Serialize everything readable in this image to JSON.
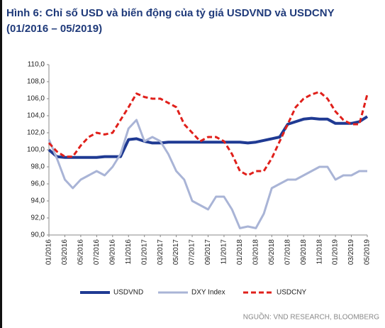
{
  "chart_data": {
    "type": "line",
    "title": "Hình 6: Chỉ số USD và biến động của tỷ giá USDVND và USDCNY (01/2016 – 05/2019)",
    "source": "NGUỒN: VND RESEARCH, BLOOMBERG",
    "categories": [
      "01/2016",
      null,
      "03/2016",
      null,
      "05/2016",
      null,
      "07/2016",
      null,
      "09/2016",
      null,
      "11/2016",
      null,
      "01/2017",
      null,
      "03/2017",
      null,
      "05/2017",
      null,
      "07/2017",
      null,
      "09/2017",
      null,
      "11/2017",
      null,
      "01/2018",
      null,
      "03/2018",
      null,
      "05/2018",
      null,
      "07/2018",
      null,
      "09/2018",
      null,
      "11/2018",
      null,
      "01/2019",
      null,
      "03/2019",
      null,
      "05/2019"
    ],
    "series": [
      {
        "name": "USDVND",
        "color": "#1f3a93",
        "width": 4,
        "dash": "none",
        "values": [
          100.0,
          99.2,
          99.1,
          99.1,
          99.1,
          99.1,
          99.1,
          99.2,
          99.2,
          99.2,
          101.2,
          101.3,
          101.0,
          100.8,
          100.8,
          100.9,
          100.9,
          100.9,
          100.9,
          100.9,
          100.9,
          100.9,
          100.9,
          100.9,
          100.9,
          100.8,
          100.9,
          101.1,
          101.3,
          101.5,
          103.0,
          103.3,
          103.6,
          103.7,
          103.6,
          103.6,
          103.1,
          103.1,
          103.1,
          103.3,
          103.9
        ]
      },
      {
        "name": "DXY Index",
        "color": "#a9b4d6",
        "width": 3,
        "dash": "none",
        "values": [
          101.2,
          99.0,
          96.5,
          95.5,
          96.5,
          97.0,
          97.5,
          97.0,
          98.0,
          99.5,
          102.5,
          103.5,
          101.0,
          101.5,
          101.0,
          99.5,
          97.5,
          96.5,
          94.0,
          93.5,
          93.0,
          94.5,
          94.5,
          93.0,
          90.8,
          91.0,
          90.8,
          92.5,
          95.5,
          96.0,
          96.5,
          96.5,
          97.0,
          97.5,
          98.0,
          98.0,
          96.5,
          97.0,
          97.0,
          97.5,
          97.5
        ]
      },
      {
        "name": "USDCNY",
        "color": "#e0201b",
        "width": 3,
        "dash": "7 4",
        "values": [
          100.8,
          99.8,
          99.2,
          99.2,
          100.5,
          101.5,
          102.0,
          101.8,
          102.0,
          103.5,
          105.0,
          106.6,
          106.2,
          106.0,
          106.0,
          105.5,
          105.0,
          103.0,
          102.0,
          101.0,
          101.5,
          101.5,
          101.0,
          99.5,
          97.5,
          97.0,
          97.5,
          97.5,
          99.0,
          101.0,
          103.0,
          105.0,
          106.0,
          106.5,
          106.8,
          106.0,
          104.5,
          103.5,
          103.0,
          103.0,
          106.5
        ]
      }
    ],
    "ylim": [
      90,
      110
    ],
    "yticks": [
      {
        "value": 90,
        "label": "90,0"
      },
      {
        "value": 92,
        "label": "92,0"
      },
      {
        "value": 94,
        "label": "94,0"
      },
      {
        "value": 96,
        "label": "96,0"
      },
      {
        "value": 98,
        "label": "98,0"
      },
      {
        "value": 100,
        "label": "100,0"
      },
      {
        "value": 102,
        "label": "102,0"
      },
      {
        "value": 104,
        "label": "104,0"
      },
      {
        "value": 106,
        "label": "106,0"
      },
      {
        "value": 108,
        "label": "108,0"
      },
      {
        "value": 110,
        "label": "110,0"
      }
    ],
    "grid": false,
    "legend": "bottom"
  }
}
